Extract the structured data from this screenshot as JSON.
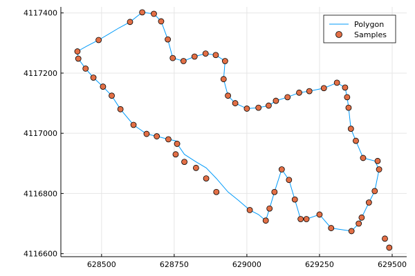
{
  "chart_data": {
    "type": "scatter",
    "title": "",
    "xlabel": "",
    "ylabel": "",
    "xlim": [
      628360,
      629550
    ],
    "ylim": [
      4116590,
      4117420
    ],
    "xticks": [
      628500,
      628750,
      629000,
      629250,
      629500
    ],
    "xtick_labels": [
      "628500",
      "628750",
      "629000",
      "629250",
      "629500"
    ],
    "yticks": [
      4116600,
      4116800,
      4117000,
      4117200,
      4117400
    ],
    "ytick_labels": [
      "4116600",
      "4116800",
      "4117000",
      "4117200",
      "4117400"
    ],
    "grid": true,
    "legend_position": "top-right",
    "colors": {
      "polygon": "#009AFA",
      "samples": "#E26F46",
      "marker_edge": "#000000",
      "grid": "#E5E5E5",
      "axis": "#000000"
    },
    "series": [
      {
        "name": "Polygon",
        "style": "line",
        "x": [
          628417,
          628450,
          628490,
          628525,
          628560,
          628598,
          628640,
          628680,
          628705,
          628728,
          628745,
          628782,
          628820,
          628858,
          628893,
          628925,
          628920,
          628935,
          628960,
          629000,
          629040,
          629075,
          629100,
          629140,
          629180,
          629215,
          629265,
          629310,
          629338,
          629345,
          629350,
          629358,
          629375,
          629400,
          629440,
          629455,
          629440,
          629420,
          629395,
          629385,
          629360,
          629290,
          629250,
          629205,
          629185,
          629165,
          629145,
          629120,
          629095,
          629078,
          629065,
          629040,
          629010,
          628970,
          628935,
          628895,
          628860,
          628825,
          628785,
          628760,
          628755,
          628730,
          628690,
          628655,
          628610,
          628565,
          628535,
          628505,
          628472,
          628445,
          628420,
          628417
        ],
        "y": [
          4117272,
          4117290,
          4117310,
          4117330,
          4117350,
          4117370,
          4117402,
          4117397,
          4117372,
          4117312,
          4117250,
          4117240,
          4117255,
          4117265,
          4117260,
          4117240,
          4117180,
          4117125,
          4117100,
          4117082,
          4117085,
          4117092,
          4117108,
          4117120,
          4117135,
          4117140,
          4117150,
          4117168,
          4117152,
          4117120,
          4117085,
          4117015,
          4116975,
          4116918,
          4116908,
          4116880,
          4116808,
          4116770,
          4116720,
          4116700,
          4116675,
          4116685,
          4116730,
          4116715,
          4116715,
          4116780,
          4116845,
          4116880,
          4116805,
          4116750,
          4116710,
          4116730,
          4116745,
          4116778,
          4116805,
          4116850,
          4116885,
          4116905,
          4116930,
          4116965,
          4116975,
          4116980,
          4116990,
          4116998,
          4117028,
          4117080,
          4117125,
          4117155,
          4117185,
          4117215,
          4117248,
          4117272
        ]
      },
      {
        "name": "Samples",
        "style": "markers",
        "x": [
          628417,
          628420,
          628445,
          628472,
          628490,
          628505,
          628535,
          628565,
          628598,
          628610,
          628640,
          628655,
          628680,
          628690,
          628705,
          628730,
          628728,
          628745,
          628760,
          628755,
          628782,
          628785,
          628820,
          628825,
          628858,
          628860,
          628893,
          628895,
          628920,
          628925,
          628935,
          628960,
          629000,
          629010,
          629040,
          629065,
          629075,
          629078,
          629095,
          629100,
          629120,
          629140,
          629145,
          629165,
          629180,
          629185,
          629205,
          629215,
          629250,
          629265,
          629290,
          629310,
          629338,
          629345,
          629350,
          629358,
          629360,
          629375,
          629385,
          629395,
          629400,
          629420,
          629440,
          629455,
          629450,
          629475,
          629490
        ],
        "y": [
          4117272,
          4117248,
          4117215,
          4117185,
          4117310,
          4117155,
          4117125,
          4117080,
          4117370,
          4117028,
          4117402,
          4116998,
          4117397,
          4116990,
          4117372,
          4116980,
          4117312,
          4117250,
          4116965,
          4116930,
          4117240,
          4116905,
          4117255,
          4116885,
          4117265,
          4116850,
          4117260,
          4116805,
          4117180,
          4117240,
          4117125,
          4117100,
          4117082,
          4116745,
          4117085,
          4116710,
          4117092,
          4116750,
          4116805,
          4117108,
          4116880,
          4117120,
          4116845,
          4116780,
          4117135,
          4116715,
          4116715,
          4117140,
          4116730,
          4117150,
          4116685,
          4117168,
          4117152,
          4117120,
          4117085,
          4117015,
          4116675,
          4116975,
          4116700,
          4116720,
          4116918,
          4116770,
          4116808,
          4116880,
          4116908,
          4116650,
          4116620
        ]
      }
    ]
  }
}
